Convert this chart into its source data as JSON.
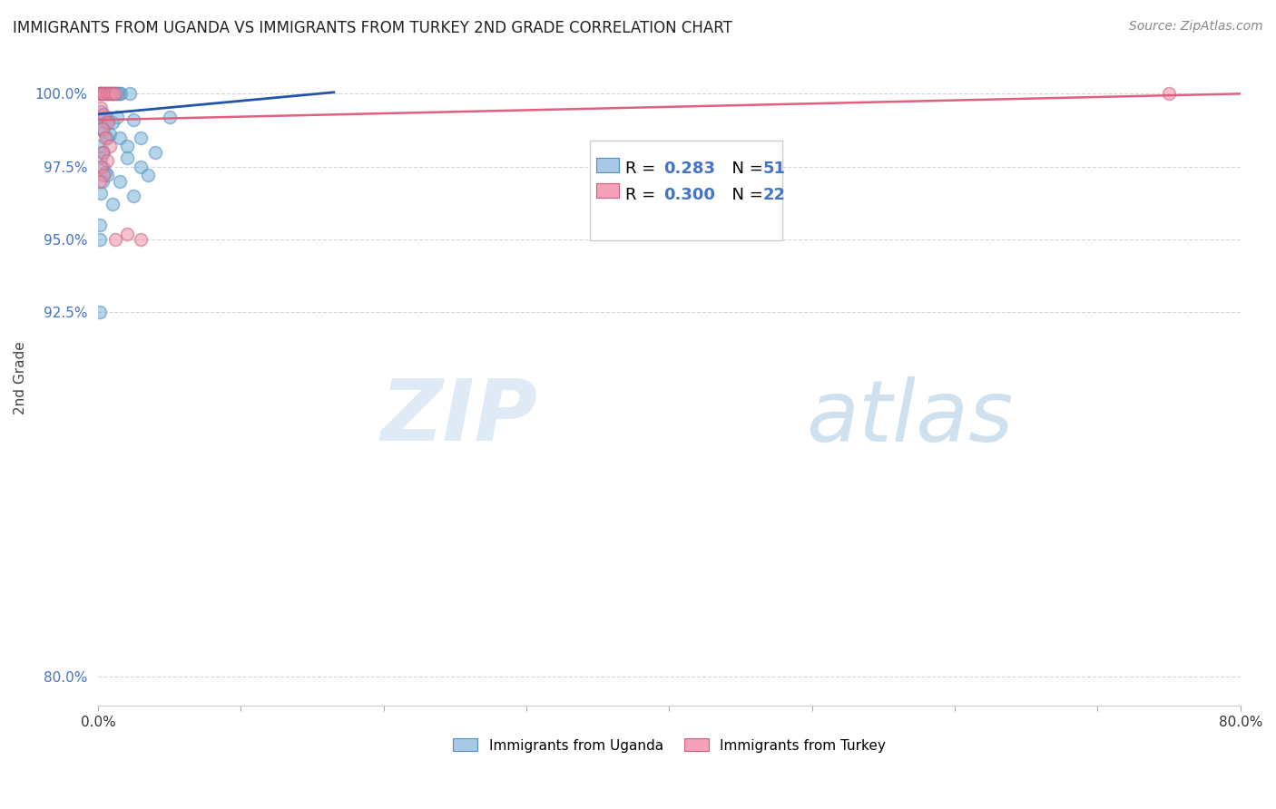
{
  "title": "IMMIGRANTS FROM UGANDA VS IMMIGRANTS FROM TURKEY 2ND GRADE CORRELATION CHART",
  "source": "Source: ZipAtlas.com",
  "ylabel": "2nd Grade",
  "y_ticks": [
    80.0,
    92.5,
    95.0,
    97.5,
    100.0
  ],
  "y_tick_labels": [
    "80.0%",
    "92.5%",
    "95.0%",
    "97.5%",
    "100.0%"
  ],
  "xlim": [
    0.0,
    0.8
  ],
  "ylim": [
    79.0,
    101.5
  ],
  "uganda_R": 0.283,
  "uganda_N": 51,
  "turkey_R": 0.3,
  "turkey_N": 22,
  "uganda_scatter": [
    [
      0.0,
      100.0
    ],
    [
      0.001,
      100.0
    ],
    [
      0.002,
      100.0
    ],
    [
      0.003,
      100.0
    ],
    [
      0.004,
      100.0
    ],
    [
      0.005,
      100.0
    ],
    [
      0.006,
      100.0
    ],
    [
      0.007,
      100.0
    ],
    [
      0.008,
      100.0
    ],
    [
      0.009,
      100.0
    ],
    [
      0.01,
      100.0
    ],
    [
      0.011,
      100.0
    ],
    [
      0.012,
      100.0
    ],
    [
      0.013,
      100.0
    ],
    [
      0.014,
      100.0
    ],
    [
      0.015,
      100.0
    ],
    [
      0.016,
      100.0
    ],
    [
      0.022,
      100.0
    ],
    [
      0.002,
      99.4
    ],
    [
      0.003,
      99.2
    ],
    [
      0.005,
      99.0
    ],
    [
      0.007,
      99.1
    ],
    [
      0.01,
      99.0
    ],
    [
      0.013,
      99.2
    ],
    [
      0.025,
      99.1
    ],
    [
      0.05,
      99.2
    ],
    [
      0.002,
      98.8
    ],
    [
      0.004,
      98.7
    ],
    [
      0.006,
      98.5
    ],
    [
      0.008,
      98.6
    ],
    [
      0.015,
      98.5
    ],
    [
      0.03,
      98.5
    ],
    [
      0.04,
      98.0
    ],
    [
      0.002,
      98.2
    ],
    [
      0.004,
      98.0
    ],
    [
      0.02,
      98.2
    ],
    [
      0.03,
      97.5
    ],
    [
      0.002,
      97.8
    ],
    [
      0.003,
      97.5
    ],
    [
      0.005,
      97.3
    ],
    [
      0.02,
      97.8
    ],
    [
      0.003,
      97.0
    ],
    [
      0.006,
      97.2
    ],
    [
      0.015,
      97.0
    ],
    [
      0.035,
      97.2
    ],
    [
      0.002,
      96.6
    ],
    [
      0.01,
      96.2
    ],
    [
      0.025,
      96.5
    ],
    [
      0.001,
      95.5
    ],
    [
      0.001,
      95.0
    ],
    [
      0.001,
      92.5
    ]
  ],
  "turkey_scatter": [
    [
      0.001,
      100.0
    ],
    [
      0.002,
      100.0
    ],
    [
      0.004,
      100.0
    ],
    [
      0.006,
      100.0
    ],
    [
      0.008,
      100.0
    ],
    [
      0.01,
      100.0
    ],
    [
      0.012,
      100.0
    ],
    [
      0.002,
      99.5
    ],
    [
      0.004,
      99.3
    ],
    [
      0.007,
      99.0
    ],
    [
      0.003,
      98.8
    ],
    [
      0.005,
      98.5
    ],
    [
      0.008,
      98.2
    ],
    [
      0.003,
      98.0
    ],
    [
      0.006,
      97.7
    ],
    [
      0.002,
      97.5
    ],
    [
      0.004,
      97.2
    ],
    [
      0.001,
      97.0
    ],
    [
      0.02,
      95.2
    ],
    [
      0.012,
      95.0
    ],
    [
      0.03,
      95.0
    ],
    [
      0.75,
      100.0
    ]
  ],
  "uganda_line_x": [
    0.0,
    0.165
  ],
  "uganda_line_y": [
    99.3,
    100.05
  ],
  "turkey_line_x": [
    0.0,
    0.8
  ],
  "turkey_line_y": [
    99.1,
    100.0
  ],
  "watermark_zip": "ZIP",
  "watermark_atlas": "atlas",
  "background_color": "#ffffff",
  "scatter_color_uganda": "#7ab4d8",
  "scatter_color_turkey": "#f090a8",
  "scatter_edge_uganda": "#5090c0",
  "scatter_edge_turkey": "#d06080",
  "scatter_alpha": 0.55,
  "scatter_size": 100,
  "line_color_uganda": "#2255aa",
  "line_color_turkey": "#e06080",
  "legend_color_uganda": "#a8c8e8",
  "legend_color_turkey": "#f4a0b8",
  "grid_color": "#cccccc",
  "y_tick_color": "#4472c4",
  "title_color": "#222222",
  "source_color": "#888888"
}
